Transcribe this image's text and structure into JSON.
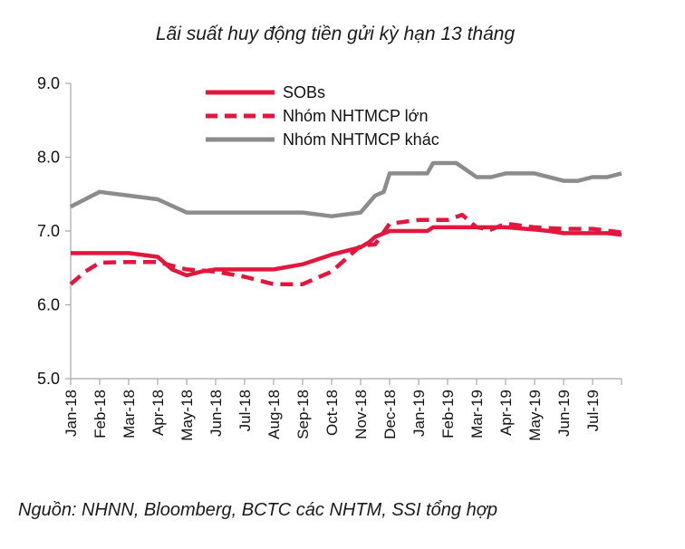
{
  "page": {
    "title": "Lãi suất huy động tiền gửi kỳ hạn 13 tháng",
    "source": "Nguồn: NHNN, Bloomberg, BCTC các NHTM, SSI tổng hợp"
  },
  "chart_data": {
    "type": "line",
    "title": "Lãi suất huy động tiền gửi kỳ hạn 13 tháng",
    "xlabel": "",
    "ylabel": "",
    "ylim": [
      5.0,
      9.0
    ],
    "yticks": [
      "5.0",
      "6.0",
      "7.0",
      "8.0",
      "9.0"
    ],
    "categories": [
      "Jan-18",
      "Feb-18",
      "Mar-18",
      "Apr-18",
      "May-18",
      "Jun-18",
      "Jul-18",
      "Aug-18",
      "Sep-18",
      "Oct-18",
      "Nov-18",
      "Dec-18",
      "Jan-19",
      "Feb-19",
      "Mar-19",
      "Apr-19",
      "May-19",
      "Jun-19",
      "Jul-19"
    ],
    "grid": false,
    "legend_position": "top-center",
    "series": [
      {
        "name": "SOBs",
        "color": "#e3173d",
        "dash": "solid",
        "points": [
          [
            0,
            6.7
          ],
          [
            1,
            6.7
          ],
          [
            2,
            6.7
          ],
          [
            3,
            6.65
          ],
          [
            3.5,
            6.48
          ],
          [
            4,
            6.4
          ],
          [
            4.5,
            6.45
          ],
          [
            5,
            6.48
          ],
          [
            6,
            6.48
          ],
          [
            7,
            6.48
          ],
          [
            8,
            6.55
          ],
          [
            9,
            6.68
          ],
          [
            10,
            6.78
          ],
          [
            10.3,
            6.85
          ],
          [
            10.5,
            6.92
          ],
          [
            11,
            7.0
          ],
          [
            12,
            7.0
          ],
          [
            12.3,
            7.0
          ],
          [
            12.5,
            7.05
          ],
          [
            13,
            7.05
          ],
          [
            14,
            7.05
          ],
          [
            15,
            7.05
          ],
          [
            16,
            7.02
          ],
          [
            16.5,
            7.0
          ],
          [
            17,
            6.97
          ],
          [
            18,
            6.97
          ],
          [
            18.5,
            6.97
          ],
          [
            19,
            6.95
          ]
        ]
      },
      {
        "name": "Nhóm NHTMCP lớn",
        "color": "#e3173d",
        "dash": "dashed",
        "points": [
          [
            0,
            6.28
          ],
          [
            0.5,
            6.45
          ],
          [
            1,
            6.57
          ],
          [
            2,
            6.58
          ],
          [
            3,
            6.58
          ],
          [
            4,
            6.48
          ],
          [
            5,
            6.45
          ],
          [
            6,
            6.38
          ],
          [
            7,
            6.28
          ],
          [
            8,
            6.28
          ],
          [
            9,
            6.45
          ],
          [
            10,
            6.8
          ],
          [
            10.5,
            6.82
          ],
          [
            11,
            7.1
          ],
          [
            12,
            7.15
          ],
          [
            13,
            7.15
          ],
          [
            13.5,
            7.22
          ],
          [
            14,
            7.05
          ],
          [
            14.5,
            7.02
          ],
          [
            15,
            7.1
          ],
          [
            16,
            7.05
          ],
          [
            17,
            7.03
          ],
          [
            18,
            7.03
          ],
          [
            19,
            6.98
          ]
        ]
      },
      {
        "name": "Nhóm NHTMCP khác",
        "color": "#8c8c8c",
        "dash": "solid",
        "points": [
          [
            0,
            7.33
          ],
          [
            1,
            7.53
          ],
          [
            2,
            7.48
          ],
          [
            3,
            7.43
          ],
          [
            4,
            7.25
          ],
          [
            5,
            7.25
          ],
          [
            6,
            7.25
          ],
          [
            7,
            7.25
          ],
          [
            8,
            7.25
          ],
          [
            9,
            7.2
          ],
          [
            10,
            7.25
          ],
          [
            10.5,
            7.48
          ],
          [
            10.8,
            7.53
          ],
          [
            11,
            7.78
          ],
          [
            12,
            7.78
          ],
          [
            12.3,
            7.78
          ],
          [
            12.5,
            7.92
          ],
          [
            13,
            7.92
          ],
          [
            13.3,
            7.92
          ],
          [
            14,
            7.73
          ],
          [
            14.5,
            7.73
          ],
          [
            15,
            7.78
          ],
          [
            16,
            7.78
          ],
          [
            17,
            7.68
          ],
          [
            17.5,
            7.68
          ],
          [
            18,
            7.73
          ],
          [
            18.5,
            7.73
          ],
          [
            19,
            7.78
          ]
        ]
      }
    ]
  }
}
